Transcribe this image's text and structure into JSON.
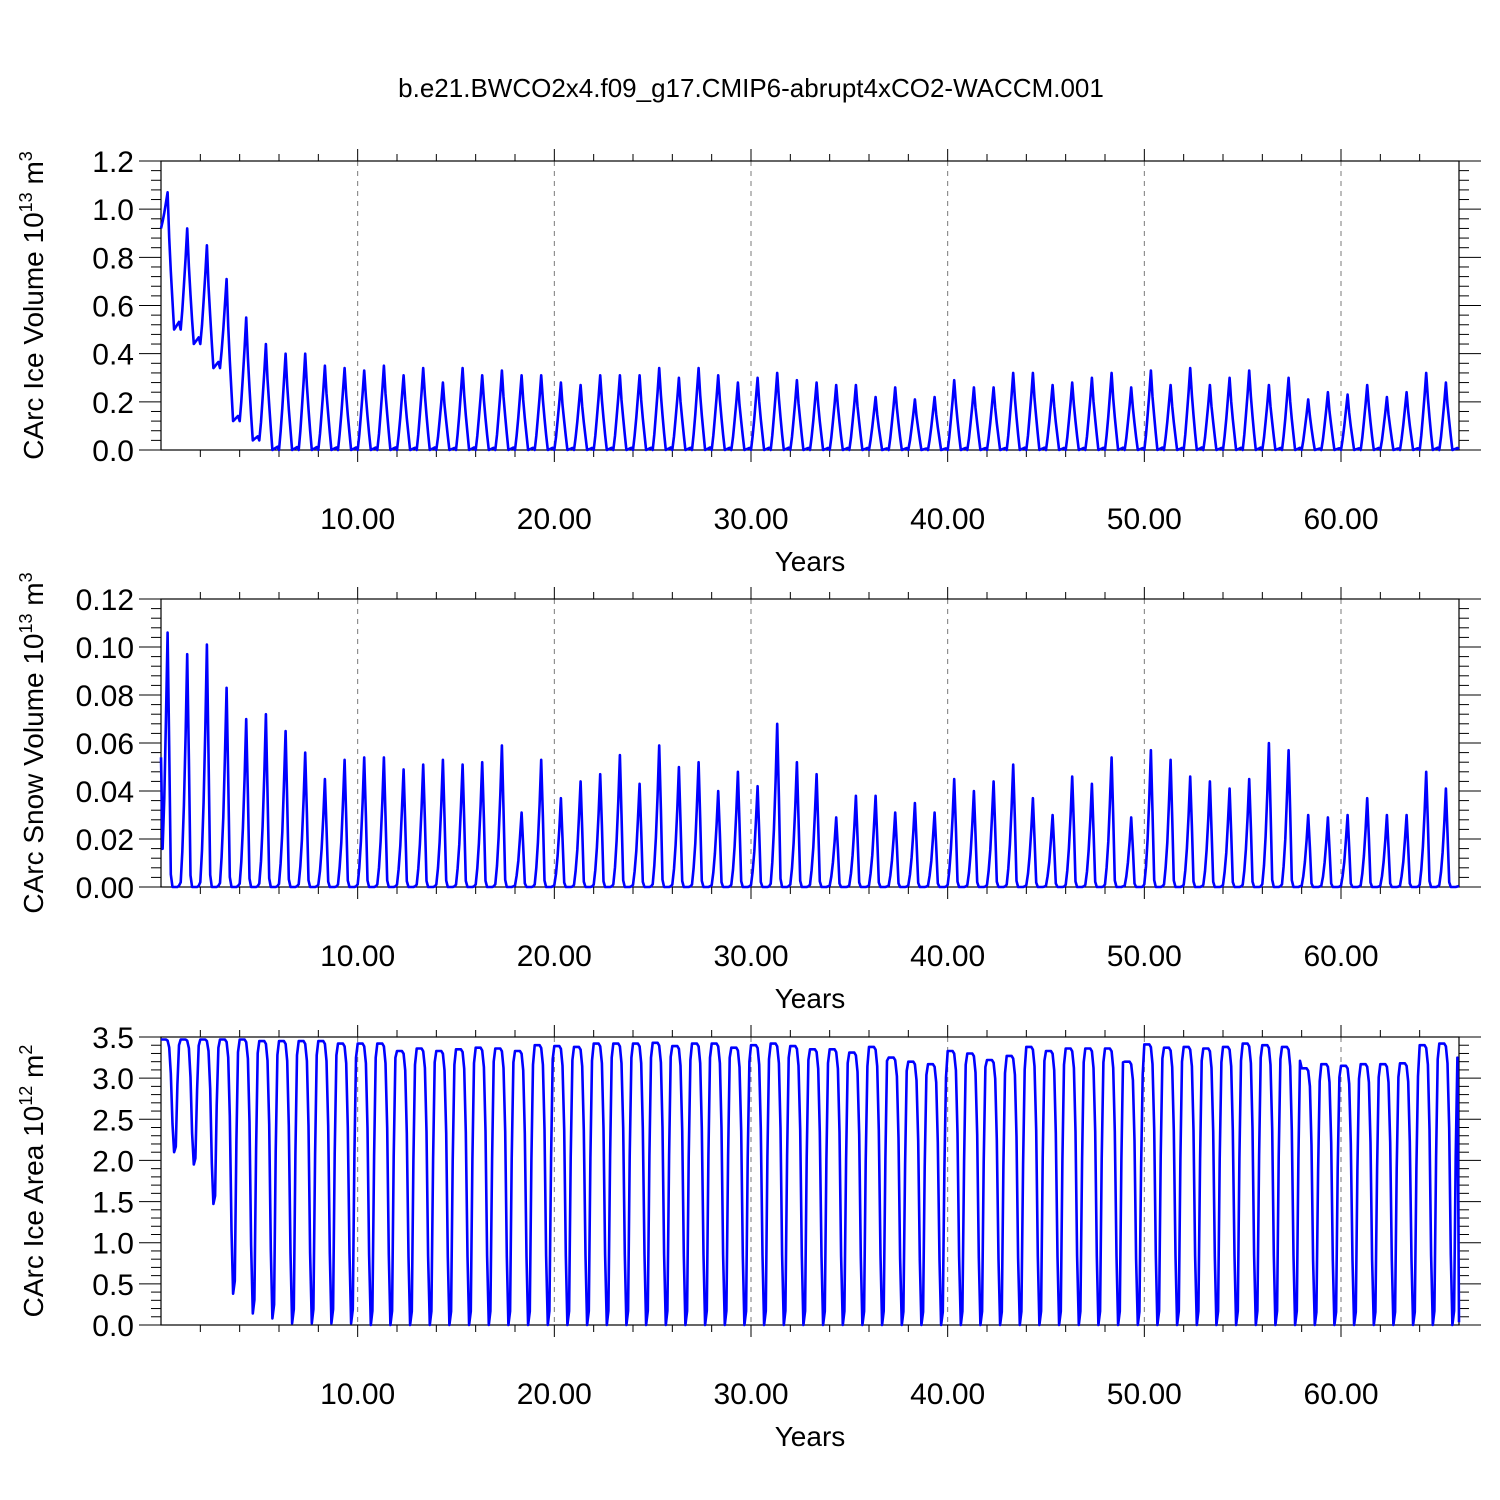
{
  "figure": {
    "title": "b.e21.BWCO2x4.f09_g17.CMIP6-abrupt4xCO2-WACCM.001"
  },
  "colors": {
    "line": "#0000ff",
    "grid": "#7a7a7a",
    "frame": "#000000"
  },
  "chart_data": [
    {
      "id": "ice-volume",
      "type": "line",
      "title": "",
      "xlabel": "Years",
      "ylabel": {
        "main": "CArc Ice Volume 10",
        "exp": "13",
        "unit": " m",
        "unit_exp": "3"
      },
      "xlim": [
        0,
        66
      ],
      "ylim": [
        0,
        1.2
      ],
      "x_ticks": [
        10,
        20,
        30,
        40,
        50,
        60
      ],
      "x_tick_labels": [
        "10.00",
        "20.00",
        "30.00",
        "40.00",
        "50.00",
        "60.00"
      ],
      "y_ticks": [
        0,
        0.2,
        0.4,
        0.6,
        0.8,
        1.0,
        1.2
      ],
      "y_tick_labels": [
        "0.0",
        "0.2",
        "0.4",
        "0.6",
        "0.8",
        "1.0",
        "1.2"
      ],
      "grid": "vertical dashed",
      "series": [
        {
          "color": "#0000ff",
          "style": "seasonal",
          "start_value": 0.92,
          "annual_max": [
            1.07,
            0.92,
            0.85,
            0.71,
            0.55,
            0.44,
            0.4,
            0.4,
            0.35,
            0.34,
            0.33,
            0.35,
            0.31,
            0.34,
            0.28,
            0.34,
            0.31,
            0.33,
            0.31,
            0.31,
            0.28,
            0.27,
            0.31,
            0.31,
            0.31,
            0.34,
            0.3,
            0.34,
            0.31,
            0.28,
            0.3,
            0.32,
            0.29,
            0.28,
            0.27,
            0.27,
            0.22,
            0.26,
            0.21,
            0.22,
            0.29,
            0.26,
            0.26,
            0.32,
            0.32,
            0.27,
            0.28,
            0.3,
            0.32,
            0.26,
            0.33,
            0.27,
            0.34,
            0.27,
            0.3,
            0.33,
            0.27,
            0.3,
            0.21,
            0.24,
            0.23,
            0.27,
            0.22,
            0.24,
            0.32,
            0.28
          ],
          "annual_min": [
            0.5,
            0.44,
            0.34,
            0.12,
            0.04,
            0.0,
            0.0,
            0.0,
            0.0,
            0.0,
            0.0,
            0.0,
            0.0,
            0.0,
            0.0,
            0.0,
            0.0,
            0.0,
            0.0,
            0.0,
            0.0,
            0.0,
            0.0,
            0.0,
            0.0,
            0.0,
            0.0,
            0.0,
            0.0,
            0.0,
            0.0,
            0.0,
            0.0,
            0.0,
            0.0,
            0.0,
            0.0,
            0.0,
            0.0,
            0.0,
            0.0,
            0.0,
            0.0,
            0.0,
            0.0,
            0.0,
            0.0,
            0.0,
            0.0,
            0.0,
            0.0,
            0.0,
            0.0,
            0.0,
            0.0,
            0.0,
            0.0,
            0.0,
            0.0,
            0.0,
            0.0,
            0.0,
            0.0,
            0.0,
            0.0,
            0.0
          ]
        }
      ]
    },
    {
      "id": "snow-volume",
      "type": "line",
      "title": "",
      "xlabel": "Years",
      "ylabel": {
        "main": "CArc Snow Volume 10",
        "exp": "13",
        "unit": " m",
        "unit_exp": "3"
      },
      "xlim": [
        0,
        66
      ],
      "ylim": [
        0,
        0.12
      ],
      "x_ticks": [
        10,
        20,
        30,
        40,
        50,
        60
      ],
      "x_tick_labels": [
        "10.00",
        "20.00",
        "30.00",
        "40.00",
        "50.00",
        "60.00"
      ],
      "y_ticks": [
        0,
        0.02,
        0.04,
        0.06,
        0.08,
        0.1,
        0.12
      ],
      "y_tick_labels": [
        "0.00",
        "0.02",
        "0.04",
        "0.06",
        "0.08",
        "0.10",
        "0.12"
      ],
      "grid": "vertical dashed",
      "series": [
        {
          "color": "#0000ff",
          "style": "spiky",
          "start_value": 0.054,
          "annual_max": [
            0.106,
            0.097,
            0.101,
            0.083,
            0.07,
            0.072,
            0.065,
            0.056,
            0.045,
            0.053,
            0.054,
            0.054,
            0.049,
            0.051,
            0.053,
            0.051,
            0.052,
            0.059,
            0.031,
            0.053,
            0.037,
            0.044,
            0.047,
            0.055,
            0.043,
            0.059,
            0.05,
            0.052,
            0.04,
            0.048,
            0.042,
            0.068,
            0.052,
            0.047,
            0.029,
            0.038,
            0.038,
            0.031,
            0.035,
            0.031,
            0.045,
            0.04,
            0.044,
            0.051,
            0.037,
            0.03,
            0.046,
            0.043,
            0.054,
            0.029,
            0.057,
            0.053,
            0.046,
            0.044,
            0.041,
            0.045,
            0.06,
            0.057,
            0.03,
            0.029,
            0.03,
            0.037,
            0.03,
            0.03,
            0.048,
            0.041
          ],
          "annual_min": [
            0.0,
            0.0,
            0.0,
            0.0,
            0.0,
            0.0,
            0.0,
            0.0,
            0.0,
            0.0,
            0.0,
            0.0,
            0.0,
            0.0,
            0.0,
            0.0,
            0.0,
            0.0,
            0.0,
            0.0,
            0.0,
            0.0,
            0.0,
            0.0,
            0.0,
            0.0,
            0.0,
            0.0,
            0.0,
            0.0,
            0.0,
            0.0,
            0.0,
            0.0,
            0.0,
            0.0,
            0.0,
            0.0,
            0.0,
            0.0,
            0.0,
            0.0,
            0.0,
            0.0,
            0.0,
            0.0,
            0.0,
            0.0,
            0.0,
            0.0,
            0.0,
            0.0,
            0.0,
            0.0,
            0.0,
            0.0,
            0.0,
            0.0,
            0.0,
            0.0,
            0.0,
            0.0,
            0.0,
            0.0,
            0.0,
            0.0
          ]
        }
      ]
    },
    {
      "id": "ice-area",
      "type": "line",
      "title": "",
      "xlabel": "Years",
      "ylabel": {
        "main": "CArc Ice Area 10",
        "exp": "12",
        "unit": " m",
        "unit_exp": "2"
      },
      "xlim": [
        0,
        66
      ],
      "ylim": [
        0,
        3.5
      ],
      "x_ticks": [
        10,
        20,
        30,
        40,
        50,
        60
      ],
      "x_tick_labels": [
        "10.00",
        "20.00",
        "30.00",
        "40.00",
        "50.00",
        "60.00"
      ],
      "y_ticks": [
        0,
        0.5,
        1.0,
        1.5,
        2.0,
        2.5,
        3.0,
        3.5
      ],
      "y_tick_labels": [
        "0.0",
        "0.5",
        "1.0",
        "1.5",
        "2.0",
        "2.5",
        "3.0",
        "3.5"
      ],
      "grid": "vertical dashed",
      "series": [
        {
          "color": "#0000ff",
          "style": "plateau",
          "start_value": 3.47,
          "annual_max": [
            3.47,
            3.47,
            3.47,
            3.47,
            3.47,
            3.45,
            3.45,
            3.45,
            3.45,
            3.42,
            3.42,
            3.42,
            3.33,
            3.36,
            3.33,
            3.35,
            3.37,
            3.36,
            3.33,
            3.4,
            3.39,
            3.38,
            3.42,
            3.42,
            3.42,
            3.43,
            3.39,
            3.42,
            3.42,
            3.37,
            3.4,
            3.42,
            3.39,
            3.35,
            3.35,
            3.31,
            3.38,
            3.25,
            3.2,
            3.17,
            3.33,
            3.3,
            3.22,
            3.27,
            3.38,
            3.33,
            3.36,
            3.36,
            3.36,
            3.2,
            3.41,
            3.37,
            3.38,
            3.36,
            3.38,
            3.42,
            3.4,
            3.38,
            3.12,
            3.17,
            3.15,
            3.17,
            3.17,
            3.18,
            3.4,
            3.42
          ],
          "annual_min": [
            2.1,
            1.95,
            1.47,
            0.38,
            0.14,
            0.08,
            0.02,
            0.02,
            0.02,
            0.02,
            0.0,
            0.0,
            0.0,
            0.0,
            0.0,
            0.0,
            0.0,
            0.0,
            0.0,
            0.0,
            0.0,
            0.0,
            0.0,
            0.0,
            0.0,
            0.0,
            0.0,
            0.0,
            0.0,
            0.0,
            0.0,
            0.0,
            0.0,
            0.0,
            0.0,
            0.0,
            0.0,
            0.0,
            0.0,
            0.0,
            0.0,
            0.0,
            0.0,
            0.0,
            0.0,
            0.0,
            0.0,
            0.0,
            0.0,
            0.0,
            0.0,
            0.0,
            0.0,
            0.0,
            0.0,
            0.0,
            0.0,
            0.0,
            0.0,
            0.0,
            0.0,
            0.0,
            0.0,
            0.0,
            0.0,
            0.0
          ]
        }
      ]
    }
  ]
}
